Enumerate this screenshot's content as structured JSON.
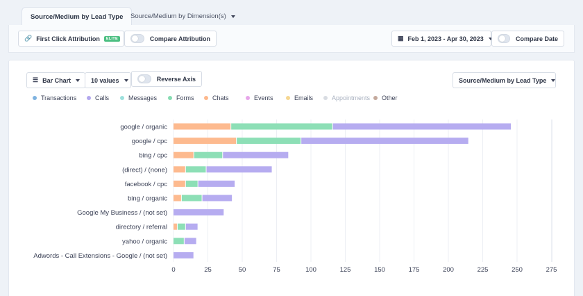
{
  "tabs": {
    "active": "Source/Medium by Lead Type",
    "second": "Source/Medium by Dimension(s)"
  },
  "toolbar": {
    "attribution": "First Click Attribution",
    "elite_badge": "ELITE",
    "compare_attribution": "Compare Attribution",
    "date_range": "Feb 1, 2023 - Apr 30, 2023",
    "compare_date": "Compare Date"
  },
  "controls": {
    "chart_type": "Bar Chart",
    "values_count": "10 values",
    "reverse_axis": "Reverse Axis",
    "report_select": "Source/Medium by Lead Type"
  },
  "legend": [
    {
      "name": "Transactions",
      "color": "#7fb3e0",
      "disabled": false
    },
    {
      "name": "Calls",
      "color": "#b3a8ee",
      "disabled": false
    },
    {
      "name": "Messages",
      "color": "#9ce0dc",
      "disabled": false
    },
    {
      "name": "Forms",
      "color": "#86dcb2",
      "disabled": false
    },
    {
      "name": "Chats",
      "color": "#fdb88c",
      "disabled": false
    },
    {
      "name": "Events",
      "color": "#e7a6ea",
      "disabled": false
    },
    {
      "name": "Emails",
      "color": "#f6d792",
      "disabled": false
    },
    {
      "name": "Appointments",
      "color": "#d8dce2",
      "disabled": true
    },
    {
      "name": "Other",
      "color": "#c4a99c",
      "disabled": false
    }
  ],
  "chart_data": {
    "type": "bar",
    "orientation": "horizontal",
    "stacked": true,
    "categories": [
      "google / organic",
      "google / cpc",
      "bing / cpc",
      "(direct) / (none)",
      "facebook / cpc",
      "bing / organic",
      "Google My Business / (not set)",
      "directory / referral",
      "yahoo / organic",
      "Adwords - Call Extensions - Google / (not set)"
    ],
    "series": [
      {
        "name": "Chats",
        "color": "#fdba8f",
        "values": [
          42,
          46,
          15,
          9,
          9,
          6,
          0,
          3,
          0,
          0
        ]
      },
      {
        "name": "Forms",
        "color": "#8ddfb6",
        "values": [
          74,
          47,
          21,
          15,
          9,
          15,
          0,
          6,
          8,
          0
        ]
      },
      {
        "name": "Calls",
        "color": "#b6acf0",
        "values": [
          130,
          122,
          48,
          48,
          27,
          22,
          37,
          9,
          9,
          15
        ]
      }
    ],
    "xticks": [
      0,
      25,
      50,
      75,
      100,
      125,
      150,
      175,
      200,
      225,
      250,
      275
    ],
    "xlim": [
      0,
      275
    ],
    "grid": true
  }
}
